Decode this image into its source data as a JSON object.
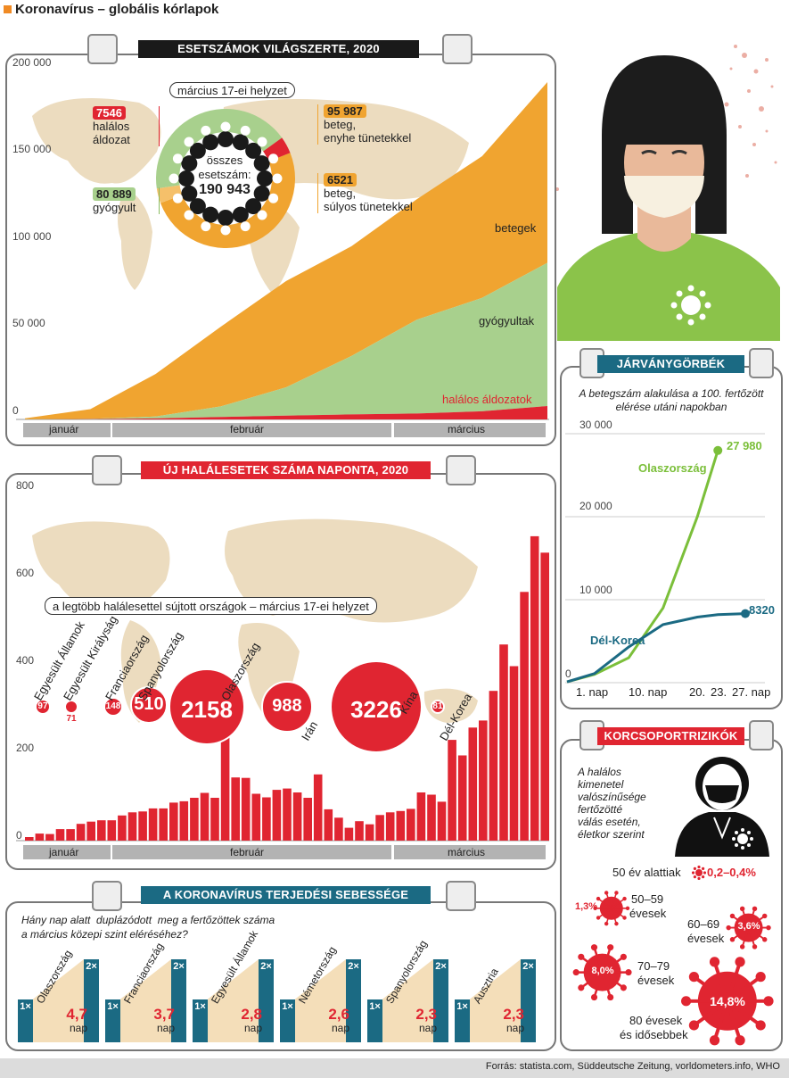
{
  "title": "Koronavírus – globális kórlapok",
  "colors": {
    "orange": "#f0a430",
    "green": "#a8d08d",
    "red": "#e02531",
    "teal": "#1b6a83",
    "grey": "#b3b3b3",
    "map": "#ecdcbf"
  },
  "cases": {
    "banner": "ESETSZÁMOK VILÁGSZERTE, 2020",
    "yticks": [
      "200 000",
      "150 000",
      "100 000",
      "50 000",
      "0"
    ],
    "months": [
      "január",
      "február",
      "március"
    ],
    "status_label": "március 17-ei helyzet",
    "total_label_1": "összes",
    "total_label_2": "esetszám:",
    "total_value": "190 943",
    "deaths_value": "7546",
    "deaths_text_1": "halálos",
    "deaths_text_2": "áldozat",
    "recovered_value": "80 889",
    "recovered_text": "gyógyult",
    "mild_value": "95 987",
    "mild_text_1": "beteg,",
    "mild_text_2": "enyhe tünetekkel",
    "severe_value": "6521",
    "severe_text_1": "beteg,",
    "severe_text_2": "súlyos tünetekkel",
    "series_sick": "betegek",
    "series_recovered": "gyógyultak",
    "series_deaths": "halálos áldozatok"
  },
  "daily": {
    "banner": "ÚJ HALÁLESETEK SZÁMA NAPONTA, 2020",
    "yticks": [
      "800",
      "600",
      "400",
      "200",
      "0"
    ],
    "months": [
      "január",
      "február",
      "március"
    ],
    "top_label": "a legtöbb halálesettel sújtott országok – március 17-ei helyzet",
    "countries": [
      {
        "name": "Egyesült Államok",
        "value": "97"
      },
      {
        "name": "Egyesült Királyság",
        "value": "71"
      },
      {
        "name": "Franciaország",
        "value": "148"
      },
      {
        "name": "Spanyolország",
        "value": "510"
      },
      {
        "name": "Olaszország",
        "value": "2158"
      },
      {
        "name": "Irán",
        "value": "988"
      },
      {
        "name": "Kína",
        "value": "3226"
      },
      {
        "name": "Dél-Korea",
        "value": "81"
      }
    ]
  },
  "chart_data": [
    {
      "type": "area",
      "title": "ESETSZÁMOK VILÁGSZERTE, 2020",
      "ylim": [
        0,
        200000
      ],
      "x": [
        "jan 22",
        "jan 29",
        "feb 5",
        "feb 12",
        "feb 19",
        "feb 26",
        "mar 4",
        "mar 11",
        "mar 17"
      ],
      "series": [
        {
          "name": "betegek",
          "values": [
            550,
            5500,
            24000,
            45000,
            60000,
            62000,
            68000,
            80000,
            102000
          ]
        },
        {
          "name": "gyógyultak",
          "values": [
            30,
            130,
            1100,
            6000,
            16000,
            33000,
            53000,
            64000,
            80889
          ]
        },
        {
          "name": "halálos áldozatok",
          "values": [
            17,
            170,
            560,
            1370,
            2120,
            2800,
            3300,
            4600,
            7546
          ]
        }
      ]
    },
    {
      "type": "bar",
      "title": "ÚJ HALÁLESETEK SZÁMA NAPONTA, 2020",
      "ylim": [
        0,
        800
      ],
      "values": [
        8,
        16,
        15,
        26,
        26,
        38,
        43,
        46,
        46,
        57,
        64,
        66,
        73,
        73,
        86,
        89,
        97,
        108,
        97,
        254,
        143,
        142,
        106,
        98,
        115,
        118,
        109,
        97,
        150,
        71,
        52,
        29,
        44,
        37,
        58,
        64,
        67,
        72,
        109,
        104,
        88,
        228,
        193,
        256,
        272,
        339,
        444,
        395,
        563,
        689,
        652
      ]
    },
    {
      "type": "line",
      "title": "JÁRVÁNYGÖRBÉK",
      "ylim": [
        0,
        30000
      ],
      "series": [
        {
          "name": "Olaszország",
          "x": [
            1,
            5,
            10,
            15,
            20,
            23
          ],
          "values": [
            100,
            1000,
            3000,
            9000,
            20000,
            27980
          ]
        },
        {
          "name": "Dél-Korea",
          "x": [
            1,
            5,
            10,
            15,
            20,
            23,
            27
          ],
          "values": [
            100,
            1100,
            4300,
            7000,
            7900,
            8200,
            8320
          ]
        }
      ]
    }
  ],
  "curve": {
    "banner": "JÁRVÁNYGÖRBÉK",
    "subtitle_1": "A betegszám alakulása a 100. fertőzött",
    "subtitle_2": "elérése utáni napokban",
    "yticks": [
      "30 000",
      "20 000",
      "10 000",
      "0"
    ],
    "xticks": [
      "1. nap",
      "10. nap",
      "20.",
      "23.",
      "27. nap"
    ],
    "italy": "Olaszország",
    "italy_value": "27 980",
    "korea": "Dél-Korea",
    "korea_value": "8320"
  },
  "age": {
    "banner": "KORCSOPORTRIZIKÓK",
    "intro": [
      "A halálos",
      "kimenetel",
      "valószínűsége",
      "fertőzötté",
      "válás esetén,",
      "életkor szerint"
    ],
    "under50": "50 év alattiak",
    "under50_value": "0,2–0,4%",
    "g1_value": "1,3%",
    "g1_label_1": "50–59",
    "g1_label_2": "évesek",
    "g2_value": "3,6%",
    "g2_label_1": "60–69",
    "g2_label_2": "évesek",
    "g3_value": "8,0%",
    "g3_label_1": "70–79",
    "g3_label_2": "évesek",
    "g4_value": "14,8%",
    "g4_label_1": "80 évesek",
    "g4_label_2": "és idősebbek"
  },
  "speed": {
    "banner": "A KORONAVÍRUS TERJEDÉSI SEBESSÉGE",
    "question_1": "Hány nap alatt  duplázódott  meg a fertőzöttek száma",
    "question_2": "a március közepi szint eléréséhez?",
    "one": "1×",
    "two": "2×",
    "unit": "nap",
    "countries": [
      {
        "name": "Olaszország",
        "value": "4,7"
      },
      {
        "name": "Franciaország",
        "value": "3,7"
      },
      {
        "name": "Egyesült Államok",
        "value": "2,8"
      },
      {
        "name": "Németország",
        "value": "2,6"
      },
      {
        "name": "Spanyolország",
        "value": "2,3"
      },
      {
        "name": "Ausztria",
        "value": "2,3"
      }
    ]
  },
  "footer": "Forrás: statista.com, Süddeutsche Zeitung, vorldometers.info, WHO"
}
